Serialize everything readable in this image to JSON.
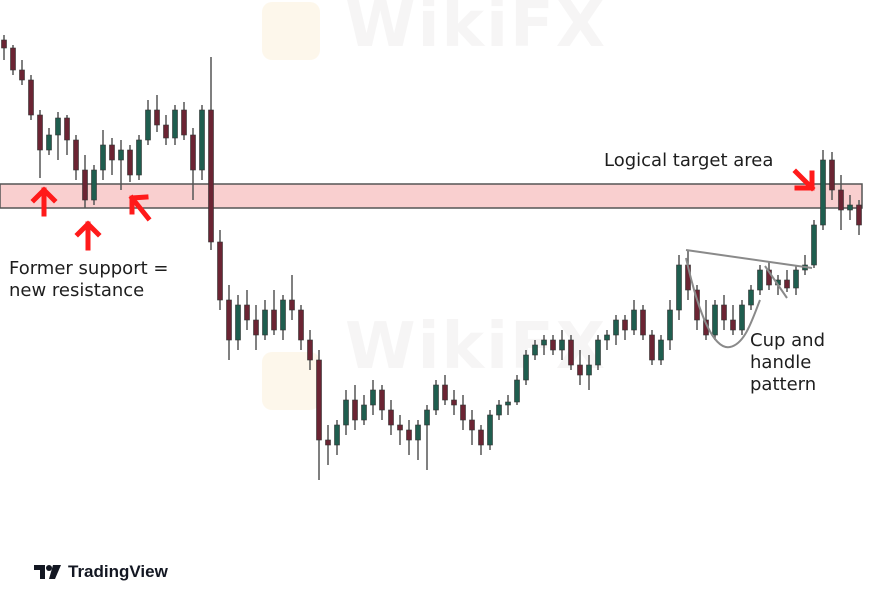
{
  "chart_data": {
    "type": "candlestick",
    "title": "",
    "xlabel": "",
    "ylabel": "",
    "grid": false,
    "colors": {
      "up": "#1f5e4f",
      "down": "#6b2433",
      "wick": "#555555",
      "zone_fill": "#f9cfcf",
      "zone_border": "#555555",
      "arrow": "#ff1a1a",
      "pattern_line": "#8a8a8a"
    },
    "candles_ohlc": [
      [
        460,
        465,
        440,
        452
      ],
      [
        452,
        455,
        425,
        430
      ],
      [
        430,
        440,
        415,
        420
      ],
      [
        420,
        425,
        380,
        385
      ],
      [
        385,
        390,
        322,
        350
      ],
      [
        350,
        372,
        345,
        365
      ],
      [
        365,
        388,
        340,
        382
      ],
      [
        382,
        385,
        345,
        360
      ],
      [
        360,
        365,
        320,
        330
      ],
      [
        330,
        345,
        292,
        300
      ],
      [
        300,
        335,
        295,
        330
      ],
      [
        330,
        370,
        320,
        355
      ],
      [
        355,
        362,
        325,
        340
      ],
      [
        340,
        360,
        310,
        350
      ],
      [
        350,
        355,
        318,
        325
      ],
      [
        325,
        365,
        320,
        360
      ],
      [
        360,
        400,
        355,
        390
      ],
      [
        390,
        405,
        368,
        375
      ],
      [
        375,
        385,
        355,
        362
      ],
      [
        362,
        395,
        355,
        390
      ],
      [
        390,
        398,
        360,
        365
      ],
      [
        365,
        372,
        300,
        330
      ],
      [
        330,
        395,
        320,
        390
      ],
      [
        390,
        443,
        250,
        258
      ],
      [
        258,
        270,
        190,
        200
      ],
      [
        200,
        215,
        140,
        160
      ],
      [
        160,
        205,
        150,
        195
      ],
      [
        195,
        210,
        170,
        180
      ],
      [
        180,
        195,
        150,
        165
      ],
      [
        165,
        200,
        160,
        190
      ],
      [
        190,
        210,
        165,
        170
      ],
      [
        170,
        205,
        160,
        200
      ],
      [
        200,
        225,
        180,
        190
      ],
      [
        190,
        195,
        150,
        160
      ],
      [
        160,
        170,
        130,
        140
      ],
      [
        140,
        150,
        20,
        60
      ],
      [
        60,
        75,
        35,
        55
      ],
      [
        55,
        80,
        45,
        75
      ],
      [
        75,
        110,
        65,
        100
      ],
      [
        100,
        115,
        70,
        80
      ],
      [
        80,
        105,
        75,
        95
      ],
      [
        95,
        120,
        85,
        110
      ],
      [
        110,
        115,
        80,
        90
      ],
      [
        90,
        100,
        65,
        75
      ],
      [
        75,
        85,
        55,
        70
      ],
      [
        70,
        80,
        45,
        60
      ],
      [
        60,
        80,
        40,
        75
      ],
      [
        75,
        95,
        30,
        90
      ],
      [
        90,
        120,
        85,
        115
      ],
      [
        115,
        125,
        95,
        100
      ],
      [
        100,
        110,
        85,
        95
      ],
      [
        95,
        105,
        70,
        80
      ],
      [
        80,
        90,
        55,
        70
      ],
      [
        70,
        75,
        45,
        55
      ],
      [
        55,
        90,
        50,
        85
      ],
      [
        85,
        100,
        80,
        95
      ],
      [
        95,
        105,
        85,
        98
      ],
      [
        98,
        125,
        95,
        120
      ],
      [
        120,
        150,
        115,
        145
      ],
      [
        145,
        160,
        140,
        155
      ],
      [
        155,
        165,
        145,
        160
      ],
      [
        160,
        165,
        145,
        150
      ],
      [
        150,
        170,
        140,
        160
      ],
      [
        160,
        165,
        130,
        135
      ],
      [
        135,
        150,
        115,
        125
      ],
      [
        125,
        145,
        110,
        135
      ],
      [
        135,
        165,
        130,
        160
      ],
      [
        160,
        170,
        150,
        165
      ],
      [
        165,
        185,
        155,
        180
      ],
      [
        180,
        185,
        160,
        170
      ],
      [
        170,
        200,
        165,
        190
      ],
      [
        190,
        195,
        160,
        165
      ],
      [
        165,
        170,
        135,
        140
      ],
      [
        140,
        165,
        135,
        160
      ],
      [
        160,
        200,
        150,
        190
      ],
      [
        190,
        245,
        180,
        235
      ],
      [
        235,
        250,
        200,
        210
      ],
      [
        210,
        215,
        170,
        180
      ],
      [
        180,
        200,
        160,
        165
      ],
      [
        165,
        200,
        160,
        195
      ],
      [
        195,
        205,
        170,
        180
      ],
      [
        180,
        195,
        165,
        170
      ],
      [
        170,
        200,
        165,
        195
      ],
      [
        195,
        215,
        190,
        210
      ],
      [
        210,
        235,
        205,
        230
      ],
      [
        230,
        238,
        210,
        215
      ],
      [
        215,
        225,
        205,
        220
      ],
      [
        220,
        230,
        208,
        212
      ],
      [
        212,
        235,
        205,
        230
      ],
      [
        230,
        245,
        225,
        235
      ],
      [
        235,
        280,
        232,
        275
      ],
      [
        275,
        350,
        270,
        340
      ],
      [
        340,
        348,
        300,
        310
      ],
      [
        310,
        325,
        270,
        290
      ],
      [
        290,
        305,
        280,
        295
      ],
      [
        295,
        300,
        265,
        275
      ]
    ],
    "zone": {
      "low": 292,
      "high": 316
    },
    "annotations": {
      "support": "Former support =\nnew resistance",
      "target": "Logical target area",
      "pattern": "Cup and\nhandle\npattern"
    }
  },
  "watermark": "WikiFX",
  "logo": "TradingView"
}
